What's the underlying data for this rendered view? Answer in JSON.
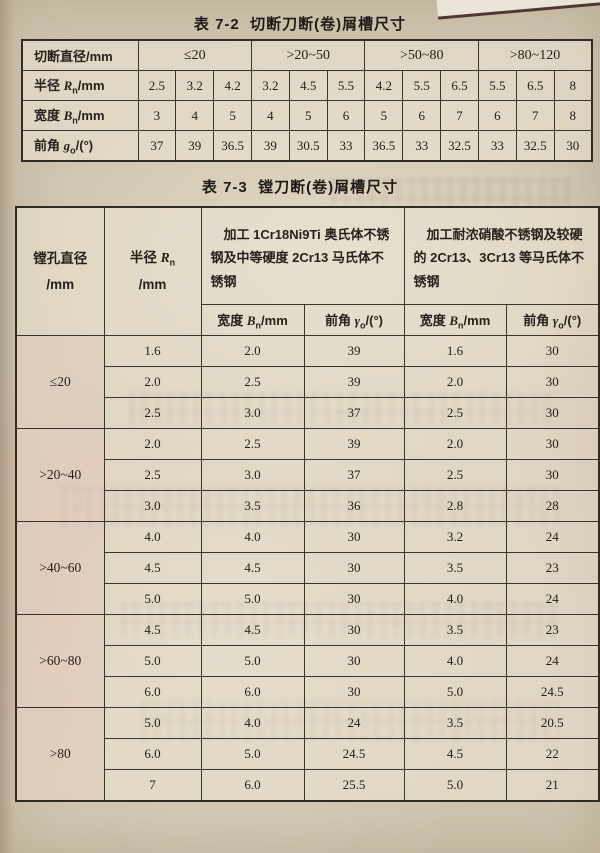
{
  "colors": {
    "paper": "#cfc4ae",
    "border": "#3a342b",
    "text": "#26211c",
    "pink_tint": "#d69a8e"
  },
  "t72": {
    "title": "表 7-2  切断刀断(卷)屑槽尺寸",
    "labels": {
      "diameter": "切断直径/mm",
      "radius": {
        "pre": "半径 ",
        "sym": "R",
        "sub": "n",
        "post": "/mm"
      },
      "width": {
        "pre": "宽度 ",
        "sym": "B",
        "sub": "n",
        "post": "/mm"
      },
      "angle": {
        "pre": "前角 ",
        "sym": "g",
        "sub": "o",
        "post": "/(°)"
      }
    },
    "groups": [
      "≤20",
      ">20~50",
      ">50~80",
      ">80~120"
    ],
    "radius": [
      "2.5",
      "3.2",
      "4.2",
      "3.2",
      "4.5",
      "5.5",
      "4.2",
      "5.5",
      "6.5",
      "5.5",
      "6.5",
      "8"
    ],
    "width": [
      "3",
      "4",
      "5",
      "4",
      "5",
      "6",
      "5",
      "6",
      "7",
      "6",
      "7",
      "8"
    ],
    "angle": [
      "37",
      "39",
      "36.5",
      "39",
      "30.5",
      "33",
      "36.5",
      "33",
      "32.5",
      "33",
      "32.5",
      "30"
    ]
  },
  "t73": {
    "title": "表 7-3  镗刀断(卷)屑槽尺寸",
    "bore": {
      "line1": "镗孔直径",
      "line2": "/mm"
    },
    "radius_head": {
      "pre": "半径 ",
      "sym": "R",
      "sub": "n",
      "line2": "/mm"
    },
    "mat1": "加工 1Cr18Ni9Ti 奥氏体不锈钢及中等硬度 2Cr13 马氏体不锈钢",
    "mat2": "加工耐浓硝酸不锈钢及较硬的 2Cr13、3Cr13 等马氏体不锈钢",
    "sub_width": {
      "pre": "宽度 ",
      "sym": "B",
      "sub": "n",
      "post": "/mm"
    },
    "sub_angle": {
      "pre": "前角 ",
      "sym": "γ",
      "sub": "o",
      "post": "/(°)"
    },
    "groups": [
      {
        "label": "≤20",
        "rows": [
          [
            "1.6",
            "2.0",
            "39",
            "1.6",
            "30"
          ],
          [
            "2.0",
            "2.5",
            "39",
            "2.0",
            "30"
          ],
          [
            "2.5",
            "3.0",
            "37",
            "2.5",
            "30"
          ]
        ]
      },
      {
        "label": ">20~40",
        "rows": [
          [
            "2.0",
            "2.5",
            "39",
            "2.0",
            "30"
          ],
          [
            "2.5",
            "3.0",
            "37",
            "2.5",
            "30"
          ],
          [
            "3.0",
            "3.5",
            "36",
            "2.8",
            "28"
          ]
        ]
      },
      {
        "label": ">40~60",
        "rows": [
          [
            "4.0",
            "4.0",
            "30",
            "3.2",
            "24"
          ],
          [
            "4.5",
            "4.5",
            "30",
            "3.5",
            "23"
          ],
          [
            "5.0",
            "5.0",
            "30",
            "4.0",
            "24"
          ]
        ]
      },
      {
        "label": ">60~80",
        "rows": [
          [
            "4.5",
            "4.5",
            "30",
            "3.5",
            "23"
          ],
          [
            "5.0",
            "5.0",
            "30",
            "4.0",
            "24"
          ],
          [
            "6.0",
            "6.0",
            "30",
            "5.0",
            "24.5"
          ]
        ]
      },
      {
        "label": ">80",
        "rows": [
          [
            "5.0",
            "4.0",
            "24",
            "3.5",
            "20.5"
          ],
          [
            "6.0",
            "5.0",
            "24.5",
            "4.5",
            "22"
          ],
          [
            "7",
            "6.0",
            "25.5",
            "5.0",
            "21"
          ]
        ]
      }
    ]
  }
}
